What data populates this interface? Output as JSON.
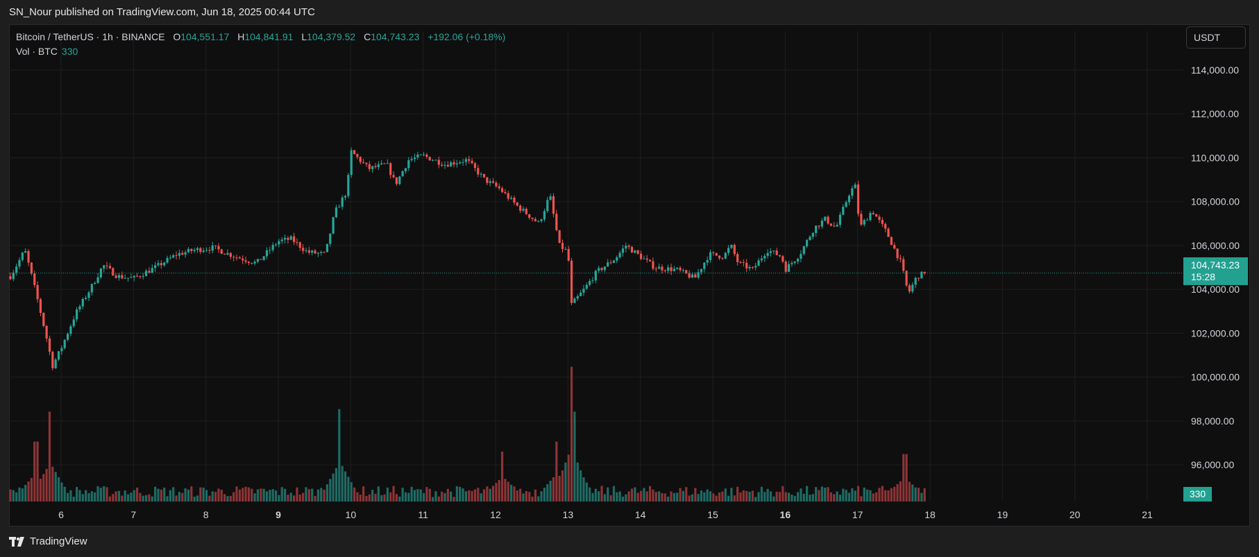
{
  "header": {
    "caption": "SN_Nour published on TradingView.com, Jun 18, 2025 00:44 UTC"
  },
  "legend": {
    "symbol": "Bitcoin / TetherUS · 1h · BINANCE",
    "open_label": "O",
    "open": "104,551.17",
    "high_label": "H",
    "high": "104,841.91",
    "low_label": "L",
    "low": "104,379.52",
    "close_label": "C",
    "close": "104,743.23",
    "change": "+192.06 (+0.18%)",
    "volume_label": "Vol · BTC",
    "volume": "330"
  },
  "currency_button": "USDT",
  "price_badge": {
    "price": "104,743.23",
    "countdown": "15:28"
  },
  "volume_badge": "330",
  "footer": {
    "brand": "TradingView",
    "logo_icon": "tradingview-logo-icon"
  },
  "colors": {
    "up": "#26a69a",
    "down": "#ef5350",
    "background": "#0f0f0f",
    "grid": "#1f1f1f"
  },
  "chart_data": {
    "type": "candlestick",
    "symbol": "Bitcoin / TetherUS",
    "interval": "1h",
    "exchange": "BINANCE",
    "y_ticks": [
      "114,000.00",
      "112,000.00",
      "110,000.00",
      "108,000.00",
      "106,000.00",
      "104,000.00",
      "102,000.00",
      "100,000.00",
      "98,000.00",
      "96,000.00"
    ],
    "y_tick_values": [
      114000,
      112000,
      110000,
      108000,
      106000,
      104000,
      102000,
      100000,
      98000,
      96000
    ],
    "ylim": [
      94300,
      115200
    ],
    "x_ticks": [
      {
        "label": "6",
        "day": 6,
        "bold": false
      },
      {
        "label": "7",
        "day": 7,
        "bold": false
      },
      {
        "label": "8",
        "day": 8,
        "bold": false
      },
      {
        "label": "9",
        "day": 9,
        "bold": true
      },
      {
        "label": "10",
        "day": 10,
        "bold": false
      },
      {
        "label": "11",
        "day": 11,
        "bold": false
      },
      {
        "label": "12",
        "day": 12,
        "bold": false
      },
      {
        "label": "13",
        "day": 13,
        "bold": false
      },
      {
        "label": "14",
        "day": 14,
        "bold": false
      },
      {
        "label": "15",
        "day": 15,
        "bold": false
      },
      {
        "label": "16",
        "day": 16,
        "bold": true
      },
      {
        "label": "17",
        "day": 17,
        "bold": false
      },
      {
        "label": "18",
        "day": 18,
        "bold": false
      },
      {
        "label": "19",
        "day": 19,
        "bold": false
      },
      {
        "label": "20",
        "day": 20,
        "bold": false
      },
      {
        "label": "21",
        "day": 21,
        "bold": false
      }
    ],
    "xlim_days": [
      5.28,
      21.0
    ],
    "last_price": 104743.23,
    "close_path_anchors": [
      [
        5.3,
        104600
      ],
      [
        5.42,
        105300
      ],
      [
        5.5,
        105800
      ],
      [
        5.58,
        104800
      ],
      [
        5.7,
        103200
      ],
      [
        5.82,
        101500
      ],
      [
        5.88,
        100500
      ],
      [
        6.0,
        101300
      ],
      [
        6.2,
        102900
      ],
      [
        6.4,
        104000
      ],
      [
        6.58,
        105100
      ],
      [
        6.78,
        104600
      ],
      [
        7.0,
        104500
      ],
      [
        7.3,
        105000
      ],
      [
        7.6,
        105600
      ],
      [
        7.85,
        105800
      ],
      [
        8.1,
        105900
      ],
      [
        8.4,
        105500
      ],
      [
        8.7,
        105200
      ],
      [
        9.0,
        106200
      ],
      [
        9.18,
        106300
      ],
      [
        9.4,
        105700
      ],
      [
        9.65,
        105600
      ],
      [
        9.78,
        107500
      ],
      [
        9.95,
        108500
      ],
      [
        10.0,
        110300
      ],
      [
        10.25,
        109500
      ],
      [
        10.5,
        109700
      ],
      [
        10.62,
        108800
      ],
      [
        10.8,
        109900
      ],
      [
        11.0,
        110100
      ],
      [
        11.3,
        109700
      ],
      [
        11.6,
        109900
      ],
      [
        11.85,
        109000
      ],
      [
        12.05,
        108600
      ],
      [
        12.3,
        107800
      ],
      [
        12.6,
        107000
      ],
      [
        12.75,
        108300
      ],
      [
        12.88,
        106000
      ],
      [
        13.0,
        105700
      ],
      [
        13.05,
        103300
      ],
      [
        13.2,
        103900
      ],
      [
        13.4,
        104800
      ],
      [
        13.65,
        105400
      ],
      [
        13.8,
        106000
      ],
      [
        14.0,
        105500
      ],
      [
        14.2,
        105000
      ],
      [
        14.5,
        104900
      ],
      [
        14.75,
        104500
      ],
      [
        14.95,
        105600
      ],
      [
        15.15,
        105500
      ],
      [
        15.25,
        106000
      ],
      [
        15.35,
        105200
      ],
      [
        15.55,
        104900
      ],
      [
        15.75,
        105800
      ],
      [
        15.95,
        105500
      ],
      [
        16.0,
        104900
      ],
      [
        16.2,
        105600
      ],
      [
        16.4,
        106800
      ],
      [
        16.55,
        107200
      ],
      [
        16.7,
        106800
      ],
      [
        16.9,
        108500
      ],
      [
        16.97,
        108700
      ],
      [
        17.03,
        106800
      ],
      [
        17.2,
        107600
      ],
      [
        17.4,
        106600
      ],
      [
        17.6,
        105200
      ],
      [
        17.7,
        103800
      ],
      [
        17.82,
        104600
      ],
      [
        17.94,
        104743
      ]
    ],
    "volume_spikes": [
      {
        "day": 5.85,
        "volume": 360
      },
      {
        "day": 9.85,
        "volume": 370
      },
      {
        "day": 13.05,
        "volume": 540
      },
      {
        "day": 12.85,
        "volume": 240
      },
      {
        "day": 13.1,
        "volume": 360
      },
      {
        "day": 5.65,
        "volume": 240
      },
      {
        "day": 17.65,
        "volume": 190
      },
      {
        "day": 12.1,
        "volume": 200
      }
    ],
    "last_volume": 330,
    "volume_unit": "BTC"
  }
}
